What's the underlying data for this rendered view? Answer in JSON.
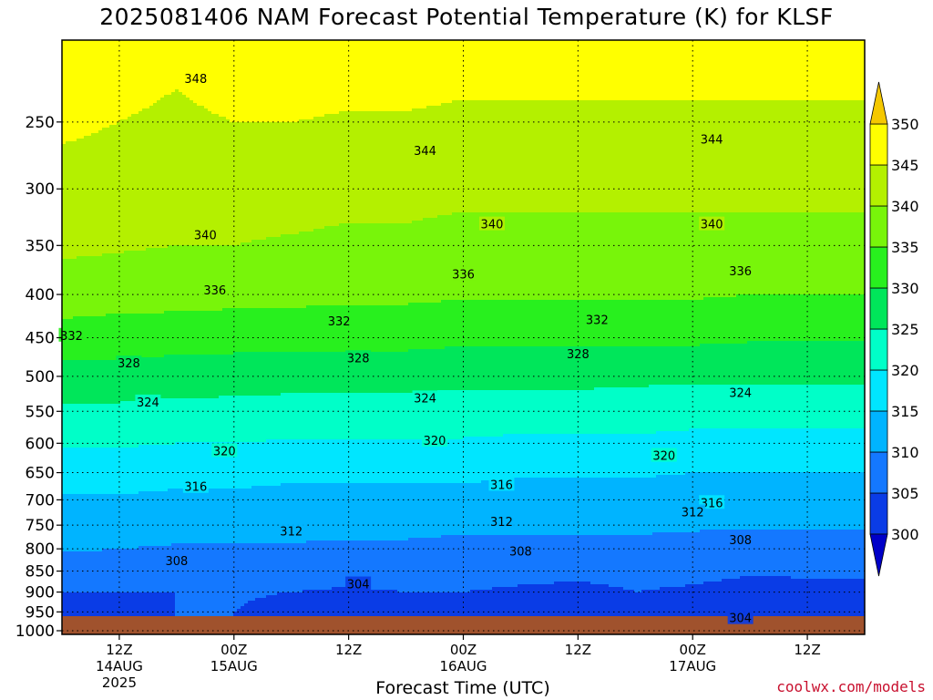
{
  "title": "2025081406 NAM Forecast Potential Temperature (K) for KLSF",
  "credit": "coolwx.com/models",
  "chart_data": {
    "type": "contour",
    "station": "KLSF",
    "run": "2025081406",
    "model": "NAM",
    "variable": "Potential Temperature",
    "units": "K",
    "xlabel": "Forecast Time (UTC)",
    "ylabel": "",
    "x_ticks": [
      {
        "hour": 6,
        "label": "12Z",
        "sub": "14AUG",
        "sub2": "2025"
      },
      {
        "hour": 18,
        "label": "00Z",
        "sub": "15AUG",
        "sub2": ""
      },
      {
        "hour": 30,
        "label": "12Z",
        "sub": "",
        "sub2": ""
      },
      {
        "hour": 42,
        "label": "00Z",
        "sub": "16AUG",
        "sub2": ""
      },
      {
        "hour": 54,
        "label": "12Z",
        "sub": "",
        "sub2": ""
      },
      {
        "hour": 66,
        "label": "00Z",
        "sub": "17AUG",
        "sub2": ""
      },
      {
        "hour": 78,
        "label": "12Z",
        "sub": "",
        "sub2": ""
      }
    ],
    "xlim_hours": [
      0,
      84
    ],
    "pressure_levels": [
      250,
      300,
      350,
      400,
      450,
      500,
      550,
      600,
      650,
      700,
      750,
      800,
      850,
      900,
      950,
      1000
    ],
    "plim": [
      200,
      1010
    ],
    "y_scale": "log",
    "colorbar": {
      "levels": [
        300,
        305,
        310,
        315,
        320,
        325,
        330,
        335,
        340,
        345,
        350
      ],
      "colors": [
        "#0000c8",
        "#0a3ce6",
        "#1478ff",
        "#00b4ff",
        "#00e6ff",
        "#00ffc8",
        "#00e65a",
        "#28f01e",
        "#78f50a",
        "#b4f000",
        "#ffff00",
        "#f5c800"
      ]
    },
    "profiles": [
      {
        "hour": 0,
        "theta": [
          [
            250,
            346
          ],
          [
            300,
            343
          ],
          [
            350,
            341
          ],
          [
            400,
            337.5
          ],
          [
            450,
            333
          ],
          [
            500,
            328
          ],
          [
            550,
            324
          ],
          [
            600,
            320.5
          ],
          [
            650,
            317
          ],
          [
            700,
            314.5
          ],
          [
            750,
            312.5
          ],
          [
            800,
            310.5
          ],
          [
            850,
            307.5
          ],
          [
            900,
            305
          ],
          [
            950,
            303
          ],
          [
            1000,
            300
          ]
        ]
      },
      {
        "hour": 6,
        "theta": [
          [
            250,
            345
          ],
          [
            300,
            342.5
          ],
          [
            350,
            340.5
          ],
          [
            400,
            337
          ],
          [
            450,
            332.5
          ],
          [
            500,
            328
          ],
          [
            550,
            324
          ],
          [
            600,
            320.5
          ],
          [
            650,
            317
          ],
          [
            700,
            314.5
          ],
          [
            750,
            312.5
          ],
          [
            800,
            310
          ],
          [
            850,
            307
          ],
          [
            900,
            305
          ],
          [
            950,
            303.5
          ],
          [
            1000,
            301
          ]
        ]
      },
      {
        "hour": 12,
        "theta": [
          [
            250,
            344
          ],
          [
            300,
            342
          ],
          [
            350,
            340
          ],
          [
            400,
            337
          ],
          [
            450,
            332
          ],
          [
            500,
            327.5
          ],
          [
            550,
            323.5
          ],
          [
            600,
            320
          ],
          [
            650,
            316.5
          ],
          [
            700,
            314
          ],
          [
            750,
            312
          ],
          [
            800,
            309.5
          ],
          [
            850,
            306.5
          ],
          [
            900,
            305
          ],
          [
            950,
            305
          ],
          [
            1000,
            305
          ]
        ]
      },
      {
        "hour": 18,
        "theta": [
          [
            250,
            345
          ],
          [
            300,
            342
          ],
          [
            350,
            340
          ],
          [
            400,
            336.5
          ],
          [
            450,
            332
          ],
          [
            500,
            327
          ],
          [
            550,
            323.5
          ],
          [
            600,
            320
          ],
          [
            650,
            316.5
          ],
          [
            700,
            314
          ],
          [
            750,
            312
          ],
          [
            800,
            309.5
          ],
          [
            850,
            307
          ],
          [
            900,
            305.5
          ],
          [
            950,
            305
          ],
          [
            1000,
            305
          ]
        ]
      },
      {
        "hour": 24,
        "theta": [
          [
            250,
            345
          ],
          [
            300,
            342
          ],
          [
            350,
            339.5
          ],
          [
            400,
            336.5
          ],
          [
            450,
            331.5
          ],
          [
            500,
            327
          ],
          [
            550,
            323
          ],
          [
            600,
            319.5
          ],
          [
            650,
            316
          ],
          [
            700,
            313.5
          ],
          [
            750,
            311.5
          ],
          [
            800,
            309.5
          ],
          [
            850,
            307
          ],
          [
            900,
            305
          ],
          [
            950,
            303.5
          ],
          [
            1000,
            302
          ]
        ]
      },
      {
        "hour": 30,
        "theta": [
          [
            250,
            344.5
          ],
          [
            300,
            341.5
          ],
          [
            350,
            339
          ],
          [
            400,
            336
          ],
          [
            450,
            331.5
          ],
          [
            500,
            327
          ],
          [
            550,
            323
          ],
          [
            600,
            319.5
          ],
          [
            650,
            316
          ],
          [
            700,
            313.5
          ],
          [
            750,
            311.5
          ],
          [
            800,
            309
          ],
          [
            850,
            306.5
          ],
          [
            900,
            304.5
          ],
          [
            950,
            303.5
          ],
          [
            1000,
            302.5
          ]
        ]
      },
      {
        "hour": 36,
        "theta": [
          [
            250,
            344.5
          ],
          [
            300,
            341.5
          ],
          [
            350,
            339
          ],
          [
            400,
            336
          ],
          [
            450,
            331.5
          ],
          [
            500,
            327
          ],
          [
            550,
            323
          ],
          [
            600,
            319.5
          ],
          [
            650,
            316
          ],
          [
            700,
            313.5
          ],
          [
            750,
            311.5
          ],
          [
            800,
            309
          ],
          [
            850,
            306.5
          ],
          [
            900,
            305
          ],
          [
            950,
            305
          ],
          [
            1000,
            305
          ]
        ]
      },
      {
        "hour": 42,
        "theta": [
          [
            250,
            344
          ],
          [
            300,
            341
          ],
          [
            350,
            338.5
          ],
          [
            400,
            335.5
          ],
          [
            450,
            331
          ],
          [
            500,
            326.5
          ],
          [
            550,
            322.5
          ],
          [
            600,
            319.5
          ],
          [
            650,
            316
          ],
          [
            700,
            313.5
          ],
          [
            750,
            311
          ],
          [
            800,
            308.5
          ],
          [
            850,
            306.5
          ],
          [
            900,
            305
          ],
          [
            950,
            304.5
          ],
          [
            1000,
            304.5
          ]
        ]
      },
      {
        "hour": 48,
        "theta": [
          [
            250,
            344
          ],
          [
            300,
            341
          ],
          [
            350,
            338.5
          ],
          [
            400,
            335.5
          ],
          [
            450,
            331
          ],
          [
            500,
            326.5
          ],
          [
            550,
            322.5
          ],
          [
            600,
            319
          ],
          [
            650,
            315.5
          ],
          [
            700,
            313
          ],
          [
            750,
            311
          ],
          [
            800,
            308.5
          ],
          [
            850,
            306
          ],
          [
            900,
            304.5
          ],
          [
            950,
            303.5
          ],
          [
            1000,
            303
          ]
        ]
      },
      {
        "hour": 54,
        "theta": [
          [
            250,
            344
          ],
          [
            300,
            341
          ],
          [
            350,
            338.5
          ],
          [
            400,
            335.5
          ],
          [
            450,
            331
          ],
          [
            500,
            326.5
          ],
          [
            550,
            322.5
          ],
          [
            600,
            319
          ],
          [
            650,
            315.5
          ],
          [
            700,
            313
          ],
          [
            750,
            311
          ],
          [
            800,
            308.5
          ],
          [
            850,
            306
          ],
          [
            900,
            304
          ],
          [
            950,
            303
          ],
          [
            1000,
            302.5
          ]
        ]
      },
      {
        "hour": 60,
        "theta": [
          [
            250,
            344
          ],
          [
            300,
            341
          ],
          [
            350,
            338.5
          ],
          [
            400,
            335.5
          ],
          [
            450,
            331
          ],
          [
            500,
            326
          ],
          [
            550,
            322.5
          ],
          [
            600,
            319
          ],
          [
            650,
            315.5
          ],
          [
            700,
            313
          ],
          [
            750,
            311
          ],
          [
            800,
            308.5
          ],
          [
            850,
            306
          ],
          [
            900,
            305
          ],
          [
            950,
            305
          ],
          [
            1000,
            305
          ]
        ]
      },
      {
        "hour": 66,
        "theta": [
          [
            250,
            344
          ],
          [
            300,
            341
          ],
          [
            350,
            338.5
          ],
          [
            400,
            335.5
          ],
          [
            450,
            331
          ],
          [
            500,
            326
          ],
          [
            550,
            322
          ],
          [
            600,
            318.5
          ],
          [
            650,
            315
          ],
          [
            700,
            312.5
          ],
          [
            750,
            310.5
          ],
          [
            800,
            308.5
          ],
          [
            850,
            306
          ],
          [
            900,
            304.5
          ],
          [
            950,
            304
          ],
          [
            1000,
            303.5
          ]
        ]
      },
      {
        "hour": 72,
        "theta": [
          [
            250,
            344
          ],
          [
            300,
            341
          ],
          [
            350,
            338.5
          ],
          [
            400,
            335
          ],
          [
            450,
            330.5
          ],
          [
            500,
            326
          ],
          [
            550,
            322
          ],
          [
            600,
            318.5
          ],
          [
            650,
            315
          ],
          [
            700,
            312.5
          ],
          [
            750,
            310.5
          ],
          [
            800,
            308
          ],
          [
            850,
            305.5
          ],
          [
            900,
            303.5
          ],
          [
            950,
            302.5
          ],
          [
            1000,
            302
          ]
        ]
      },
      {
        "hour": 78,
        "theta": [
          [
            250,
            344
          ],
          [
            300,
            341
          ],
          [
            350,
            338.5
          ],
          [
            400,
            335
          ],
          [
            450,
            330.5
          ],
          [
            500,
            326
          ],
          [
            550,
            322
          ],
          [
            600,
            318.5
          ],
          [
            650,
            315
          ],
          [
            700,
            312.5
          ],
          [
            750,
            310.5
          ],
          [
            800,
            308
          ],
          [
            850,
            305.5
          ],
          [
            900,
            304
          ],
          [
            950,
            303
          ],
          [
            1000,
            302.5
          ]
        ]
      },
      {
        "hour": 84,
        "theta": [
          [
            250,
            344
          ],
          [
            300,
            341
          ],
          [
            350,
            338.5
          ],
          [
            400,
            335
          ],
          [
            450,
            330.5
          ],
          [
            500,
            326
          ],
          [
            550,
            322
          ],
          [
            600,
            318.5
          ],
          [
            650,
            315
          ],
          [
            700,
            312.5
          ],
          [
            750,
            310.5
          ],
          [
            800,
            308
          ],
          [
            850,
            305.5
          ],
          [
            900,
            304
          ],
          [
            950,
            303
          ],
          [
            1000,
            302.5
          ]
        ]
      }
    ],
    "contour_labels": [
      {
        "value": 348,
        "hour": 14,
        "p": 222
      },
      {
        "value": 344,
        "hour": 38,
        "p": 270
      },
      {
        "value": 344,
        "hour": 68,
        "p": 262
      },
      {
        "value": 340,
        "hour": 15,
        "p": 340
      },
      {
        "value": 340,
        "hour": 45,
        "p": 330
      },
      {
        "value": 340,
        "hour": 68,
        "p": 330
      },
      {
        "value": 336,
        "hour": 16,
        "p": 395
      },
      {
        "value": 336,
        "hour": 42,
        "p": 378
      },
      {
        "value": 336,
        "hour": 71,
        "p": 375
      },
      {
        "value": 332,
        "hour": 1,
        "p": 447
      },
      {
        "value": 332,
        "hour": 29,
        "p": 430
      },
      {
        "value": 332,
        "hour": 56,
        "p": 428
      },
      {
        "value": 328,
        "hour": 7,
        "p": 482
      },
      {
        "value": 328,
        "hour": 31,
        "p": 475
      },
      {
        "value": 328,
        "hour": 54,
        "p": 470
      },
      {
        "value": 324,
        "hour": 9,
        "p": 536
      },
      {
        "value": 324,
        "hour": 38,
        "p": 530
      },
      {
        "value": 324,
        "hour": 71,
        "p": 522
      },
      {
        "value": 320,
        "hour": 17,
        "p": 612
      },
      {
        "value": 320,
        "hour": 39,
        "p": 595
      },
      {
        "value": 320,
        "hour": 63,
        "p": 620
      },
      {
        "value": 316,
        "hour": 14,
        "p": 675
      },
      {
        "value": 316,
        "hour": 46,
        "p": 671
      },
      {
        "value": 316,
        "hour": 68,
        "p": 705
      },
      {
        "value": 312,
        "hour": 24,
        "p": 762
      },
      {
        "value": 312,
        "hour": 46,
        "p": 742
      },
      {
        "value": 312,
        "hour": 66,
        "p": 723
      },
      {
        "value": 308,
        "hour": 12,
        "p": 826
      },
      {
        "value": 308,
        "hour": 48,
        "p": 805
      },
      {
        "value": 308,
        "hour": 71,
        "p": 780
      },
      {
        "value": 304,
        "hour": 31,
        "p": 880
      },
      {
        "value": 304,
        "hour": 71,
        "p": 965
      }
    ],
    "ground_color": "#a0522d"
  }
}
